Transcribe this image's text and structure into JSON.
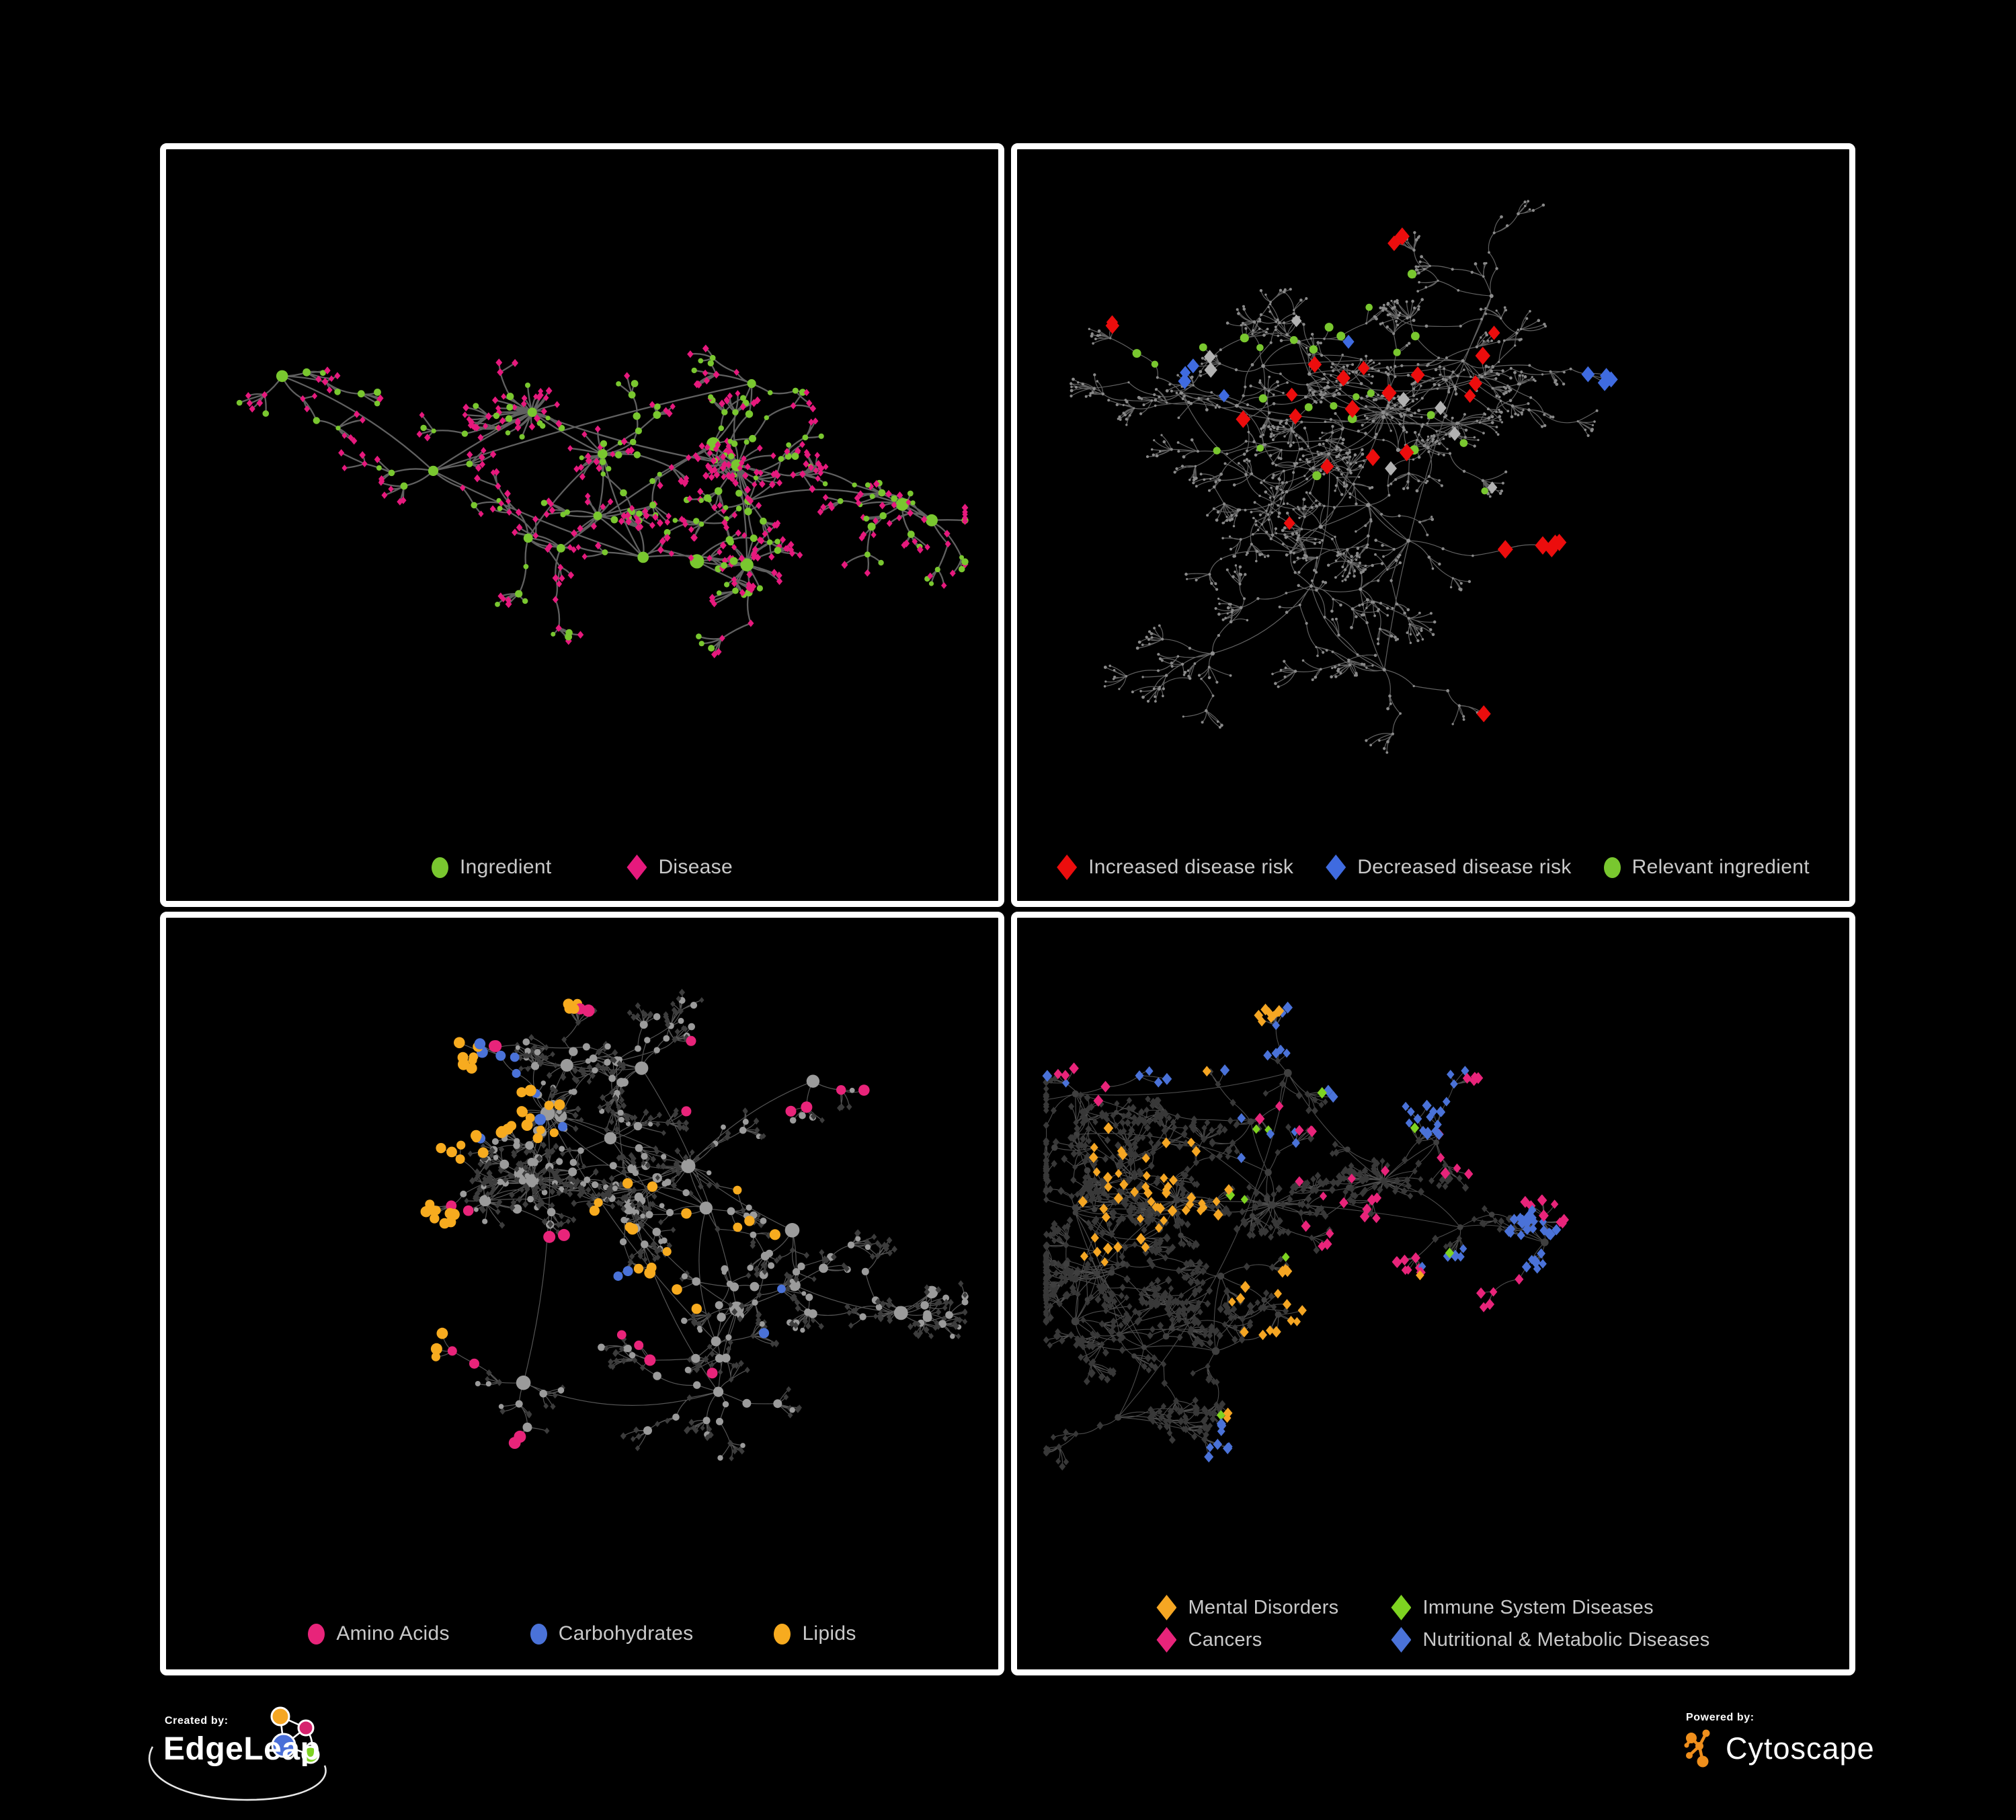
{
  "page": {
    "background": "#000000",
    "panel_border": "#ffffff",
    "legend_text_color": "#c9c9c9"
  },
  "footer": {
    "created_by_label": "Created by:",
    "created_by_brand": "EdgeLeap",
    "powered_by_label": "Powered by:",
    "powered_by_brand": "Cytoscape",
    "cytoscape_orange": "#ef8f1c",
    "edgeleap_logo": {
      "orange": "#f5a623",
      "pink": "#d6246e",
      "blue": "#4a6fd8",
      "green": "#7ed321",
      "outline": "#ffffff"
    }
  },
  "chart_data": [
    {
      "type": "network",
      "panel": "top-left",
      "categories": [
        "Ingredient",
        "Disease"
      ]
    },
    {
      "type": "network",
      "panel": "top-right",
      "categories": [
        "Increased disease risk",
        "Decreased disease risk",
        "Relevant ingredient"
      ]
    },
    {
      "type": "network",
      "panel": "bottom-left",
      "categories": [
        "Amino Acids",
        "Carbohydrates",
        "Lipids"
      ]
    },
    {
      "type": "network",
      "panel": "bottom-right",
      "categories": [
        "Mental Disorders",
        "Immune System Diseases",
        "Cancers",
        "Nutritional & Metabolic Diseases"
      ]
    }
  ],
  "panels": [
    {
      "id": "ingredient-disease",
      "legend": [
        {
          "label": "Ingredient",
          "shape": "circle",
          "color": "#79c72f"
        },
        {
          "label": "Disease",
          "shape": "diamond",
          "color": "#e6197d"
        }
      ],
      "gen": {
        "seed": 7,
        "hubs": 16,
        "branches": [
          2,
          5
        ],
        "segs": [
          1,
          3
        ],
        "step": [
          0.022,
          0.058
        ],
        "fan": [
          2,
          6
        ],
        "core": [
          34,
          26,
          20,
          14,
          10
        ],
        "curv": 0.35,
        "edge": {
          "color": "#6a6a6a",
          "w": 2.3,
          "o": 0.9
        },
        "variants": {
          "hub": [
            {
              "shape": "circle",
              "color": "#79c72f",
              "s": [
                6,
                11
              ],
              "p": 1
            }
          ],
          "mid": [
            {
              "shape": "circle",
              "color": "#79c72f",
              "s": [
                3.5,
                6
              ],
              "p": 0.55
            },
            {
              "shape": "diamond",
              "color": "#e6197d",
              "s": [
                4.2,
                5
              ],
              "p": 0.45
            }
          ],
          "leaf": [
            {
              "shape": "diamond",
              "color": "#e6197d",
              "s": [
                4,
                5
              ],
              "p": 0.78
            },
            {
              "shape": "circle",
              "color": "#79c72f",
              "s": [
                3.5,
                5.5
              ],
              "p": 0.22
            }
          ]
        },
        "overlays": []
      }
    },
    {
      "id": "disease-risk",
      "legend": [
        {
          "label": "Increased disease risk",
          "shape": "diamond",
          "color": "#ec0d0d"
        },
        {
          "label": "Decreased disease risk",
          "shape": "diamond",
          "color": "#3f6be0"
        },
        {
          "label": "Relevant ingredient",
          "shape": "circle",
          "color": "#79c72f"
        }
      ],
      "gen": {
        "seed": 13,
        "hubs": 24,
        "branches": [
          3,
          6
        ],
        "segs": [
          2,
          4
        ],
        "step": [
          0.02,
          0.05
        ],
        "fan": [
          3,
          8
        ],
        "core": [
          20,
          14,
          10
        ],
        "curv": 0.5,
        "edge": {
          "color": "#717171",
          "w": 1.2,
          "o": 0.85
        },
        "variants": {
          "hub": [
            {
              "shape": "circle",
              "color": "#8e8e8e",
              "s": [
                2.4,
                3.2
              ],
              "p": 1
            }
          ],
          "mid": [
            {
              "shape": "circle",
              "color": "#8a8a8a",
              "s": [
                1.6,
                2.4
              ],
              "p": 1
            }
          ],
          "leaf": [
            {
              "shape": "circle",
              "color": "#8a8a8a",
              "s": [
                1.6,
                2.4
              ],
              "p": 1
            }
          ]
        },
        "overlays": [
          {
            "shape": "diamond",
            "color": "#ec0d0d",
            "s": 10,
            "count": 27,
            "spread": 0.05,
            "centers": [
              [
                0.37,
                0.3
              ],
              [
                0.44,
                0.38
              ],
              [
                0.3,
                0.36
              ],
              [
                0.54,
                0.4
              ],
              [
                0.6,
                0.28
              ],
              [
                0.36,
                0.52
              ],
              [
                0.63,
                0.57
              ],
              [
                0.16,
                0.31
              ],
              [
                0.74,
                0.7
              ],
              [
                0.77,
                0.75
              ],
              [
                0.4,
                0.12
              ],
              [
                0.47,
                0.44
              ]
            ]
          },
          {
            "shape": "diamond",
            "color": "#3f6be0",
            "s": 9,
            "count": 9,
            "spread": 0.03,
            "centers": [
              [
                0.215,
                0.325
              ],
              [
                0.23,
                0.36
              ],
              [
                0.835,
                0.175
              ],
              [
                0.855,
                0.175
              ],
              [
                0.4,
                0.31
              ]
            ]
          },
          {
            "shape": "diamond",
            "color": "#b2b2b2",
            "s": 8.5,
            "count": 8,
            "spread": 0.04,
            "centers": [
              [
                0.27,
                0.33
              ],
              [
                0.5,
                0.4
              ],
              [
                0.56,
                0.47
              ],
              [
                0.41,
                0.47
              ],
              [
                0.33,
                0.3
              ]
            ]
          },
          {
            "shape": "circle",
            "color": "#79c72f",
            "s": 6,
            "count": 26,
            "spread": 0.07,
            "centers": [
              [
                0.34,
                0.33
              ],
              [
                0.44,
                0.37
              ],
              [
                0.3,
                0.27
              ],
              [
                0.54,
                0.49
              ],
              [
                0.26,
                0.44
              ],
              [
                0.49,
                0.25
              ],
              [
                0.37,
                0.44
              ],
              [
                0.2,
                0.3
              ]
            ]
          }
        ]
      }
    },
    {
      "id": "nutrient-classes",
      "legend": [
        {
          "label": "Amino Acids",
          "shape": "circle",
          "color": "#e8247a"
        },
        {
          "label": "Carbohydrates",
          "shape": "circle",
          "color": "#4a72d8"
        },
        {
          "label": "Lipids",
          "shape": "circle",
          "color": "#f7ab1f"
        }
      ],
      "gen": {
        "seed": 5,
        "hubs": 22,
        "branches": [
          2,
          6
        ],
        "segs": [
          1,
          3
        ],
        "step": [
          0.02,
          0.055
        ],
        "fan": [
          3,
          8
        ],
        "core": [
          40,
          28,
          20,
          12,
          10
        ],
        "curv": 0.4,
        "edge": {
          "color": "#9a9a9a",
          "w": 1.2,
          "o": 0.55
        },
        "variants": {
          "hub": [
            {
              "shape": "circle",
              "color": "#9b9b9b",
              "s": [
                7,
                11
              ],
              "p": 1
            }
          ],
          "mid": [
            {
              "shape": "circle",
              "color": "#9b9b9b",
              "s": [
                4.5,
                7
              ],
              "p": 0.7
            },
            {
              "shape": "diamond",
              "color": "#3c3c3c",
              "s": [
                3.8,
                4.6
              ],
              "p": 0.3
            }
          ],
          "leaf": [
            {
              "shape": "diamond",
              "color": "#3c3c3c",
              "s": [
                3.6,
                4.6
              ],
              "p": 0.82
            },
            {
              "shape": "circle",
              "color": "#9b9b9b",
              "s": [
                3.5,
                5.5
              ],
              "p": 0.18
            }
          ]
        },
        "overlays": [
          {
            "shape": "circle",
            "color": "#f7ab1f",
            "s": 7.5,
            "count": 64,
            "spread": 0.045,
            "centers": [
              [
                0.42,
                0.26
              ],
              [
                0.46,
                0.3
              ],
              [
                0.37,
                0.32
              ],
              [
                0.29,
                0.19
              ],
              [
                0.21,
                0.27
              ],
              [
                0.55,
                0.44
              ],
              [
                0.34,
                0.51
              ],
              [
                0.59,
                0.54
              ],
              [
                0.14,
                0.54
              ],
              [
                0.44,
                0.08
              ],
              [
                0.69,
                0.46
              ]
            ]
          },
          {
            "shape": "circle",
            "color": "#4a72d8",
            "s": 7.5,
            "count": 14,
            "spread": 0.03,
            "centers": [
              [
                0.41,
                0.29
              ],
              [
                0.39,
                0.25
              ],
              [
                0.03,
                0.21
              ],
              [
                0.51,
                0.56
              ],
              [
                0.71,
                0.61
              ],
              [
                0.45,
                0.33
              ]
            ]
          },
          {
            "shape": "circle",
            "color": "#e8247a",
            "s": 8,
            "count": 22,
            "spread": 0.04,
            "centers": [
              [
                0.05,
                0.2
              ],
              [
                0.16,
                0.49
              ],
              [
                0.24,
                0.63
              ],
              [
                0.42,
                0.03
              ],
              [
                0.61,
                0.21
              ],
              [
                0.85,
                0.24
              ],
              [
                0.54,
                0.62
              ],
              [
                0.62,
                0.71
              ],
              [
                0.32,
                0.82
              ],
              [
                0.46,
                0.54
              ],
              [
                0.74,
                0.25
              ]
            ]
          }
        ]
      }
    },
    {
      "id": "disease-classes",
      "legend": [
        {
          "label": "Mental Disorders",
          "shape": "diamond",
          "color": "#f5a623"
        },
        {
          "label": "Immune System Diseases",
          "shape": "diamond",
          "color": "#7ed321"
        },
        {
          "label": "Cancers",
          "shape": "diamond",
          "color": "#e8247a"
        },
        {
          "label": "Nutritional & Metabolic Diseases",
          "shape": "diamond",
          "color": "#4a72d8"
        }
      ],
      "legend_layout": "two-column",
      "gen": {
        "seed": 21,
        "hubs": 26,
        "branches": [
          3,
          6
        ],
        "segs": [
          1,
          3
        ],
        "step": [
          0.02,
          0.05
        ],
        "fan": [
          3,
          8
        ],
        "core": [
          30,
          22,
          16,
          10
        ],
        "curv": 0.4,
        "edge": {
          "color": "#8a8a8a",
          "w": 1.1,
          "o": 0.55
        },
        "variants": {
          "hub": [
            {
              "shape": "circle",
              "color": "#3f3f3f",
              "s": [
                4,
                6
              ],
              "p": 1
            }
          ],
          "mid": [
            {
              "shape": "diamond",
              "color": "#383838",
              "s": [
                4,
                5.2
              ],
              "p": 0.9
            },
            {
              "shape": "circle",
              "color": "#3f3f3f",
              "s": [
                3.5,
                5
              ],
              "p": 0.1
            }
          ],
          "leaf": [
            {
              "shape": "diamond",
              "color": "#383838",
              "s": [
                4,
                5.2
              ],
              "p": 1
            }
          ]
        },
        "overlays": [
          {
            "shape": "diamond",
            "color": "#f5a623",
            "s": 6.5,
            "count": 80,
            "spread": 0.05,
            "centers": [
              [
                0.15,
                0.42
              ],
              [
                0.19,
                0.45
              ],
              [
                0.12,
                0.47
              ],
              [
                0.17,
                0.38
              ],
              [
                0.24,
                0.09
              ],
              [
                0.4,
                0.73
              ],
              [
                0.3,
                0.59
              ],
              [
                0.13,
                0.36
              ],
              [
                0.21,
                0.42
              ]
            ]
          },
          {
            "shape": "diamond",
            "color": "#e8247a",
            "s": 6.5,
            "count": 56,
            "spread": 0.05,
            "centers": [
              [
                0.43,
                0.47
              ],
              [
                0.47,
                0.51
              ],
              [
                0.39,
                0.42
              ],
              [
                0.84,
                0.21
              ],
              [
                0.86,
                0.24
              ],
              [
                0.54,
                0.35
              ],
              [
                0.59,
                0.78
              ],
              [
                0.35,
                0.29
              ],
              [
                0.45,
                0.55
              ],
              [
                0.1,
                0.22
              ]
            ]
          },
          {
            "shape": "diamond",
            "color": "#4a72d8",
            "s": 6.5,
            "count": 84,
            "spread": 0.05,
            "centers": [
              [
                0.61,
                0.56
              ],
              [
                0.66,
                0.59
              ],
              [
                0.74,
                0.29
              ],
              [
                0.67,
                0.24
              ],
              [
                0.81,
                0.29
              ],
              [
                0.54,
                0.04
              ],
              [
                0.25,
                0.05
              ],
              [
                0.14,
                0.09
              ],
              [
                0.44,
                0.17
              ],
              [
                0.3,
                0.34
              ],
              [
                0.77,
                0.14
              ],
              [
                0.59,
                0.9
              ],
              [
                0.34,
                0.88
              ],
              [
                0.63,
                0.64
              ],
              [
                0.72,
                0.34
              ]
            ]
          },
          {
            "shape": "diamond",
            "color": "#7ed321",
            "s": 6.5,
            "count": 9,
            "spread": 0.02,
            "centers": [
              [
                0.29,
                0.32
              ],
              [
                0.27,
                0.41
              ],
              [
                0.46,
                0.29
              ],
              [
                0.51,
                0.58
              ],
              [
                0.32,
                0.51
              ],
              [
                0.56,
                0.88
              ],
              [
                0.43,
                0.23
              ]
            ]
          }
        ]
      }
    }
  ]
}
